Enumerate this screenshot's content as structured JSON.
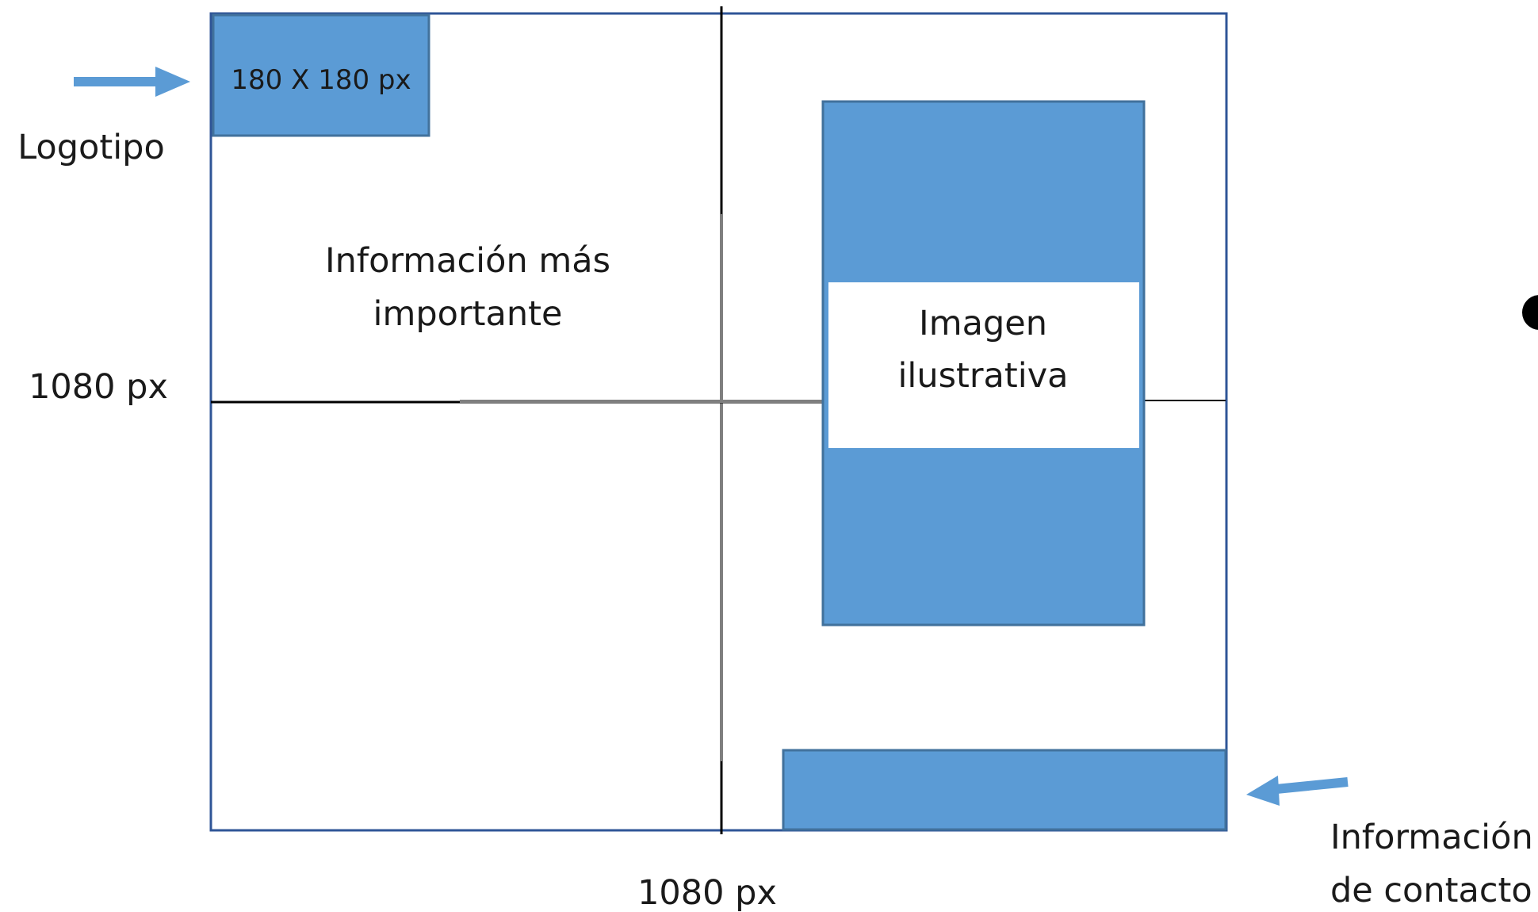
{
  "diagram": {
    "labels": {
      "logo_size": "180 X 180 px",
      "logo": "Logotipo",
      "main_info_line1": "Información más",
      "main_info_line2": "importante",
      "image_line1": "Imagen",
      "image_line2": "ilustrativa",
      "height": "1080 px",
      "width": "1080 px",
      "contact_line1": "Información",
      "contact_line2": "de contacto"
    },
    "colors": {
      "block_fill": "#5b9bd5",
      "block_stroke": "#41719c",
      "frame_stroke": "#2f5597",
      "guide_dark": "#000000",
      "guide_gray": "#7f7f7f",
      "arrow": "#5b9bd5"
    }
  }
}
